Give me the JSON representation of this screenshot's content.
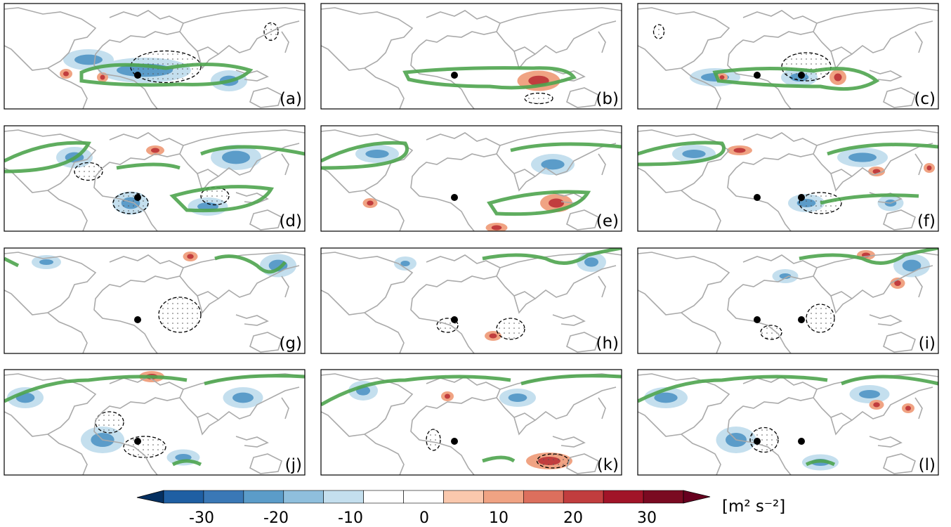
{
  "figure": {
    "panel_labels": [
      "(a)",
      "(b)",
      "(c)",
      "(d)",
      "(e)",
      "(f)",
      "(g)",
      "(h)",
      "(i)",
      "(j)",
      "(k)",
      "(l)"
    ],
    "colorbar": {
      "ticks": [
        "-30",
        "-20",
        "-10",
        "0",
        "10",
        "20",
        "30"
      ],
      "unit_label": "[m² s⁻²]",
      "colors": [
        "#053061",
        "#1f5fa3",
        "#3a78b6",
        "#5b9cc9",
        "#8fbfdd",
        "#c4dfee",
        "#ffffff",
        "#ffffff",
        "#fac8ad",
        "#f0a383",
        "#dc6f5d",
        "#c13d3e",
        "#a11428",
        "#7a0a21",
        "#67001f"
      ]
    },
    "styles": {
      "coast_color": "#aaaaaa",
      "green_contour": "#4ea44e",
      "black_contour": "#000000"
    }
  }
}
